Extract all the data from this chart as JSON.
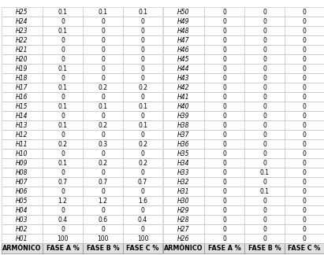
{
  "headers": [
    "ARMÓNICO",
    "FASE A %",
    "FASE B %",
    "FASE C %"
  ],
  "rows_left": [
    [
      "H01",
      "100",
      "100",
      "100"
    ],
    [
      "H02",
      "0",
      "0",
      "0"
    ],
    [
      "H03",
      "0.4",
      "0.6",
      "0.4"
    ],
    [
      "H04",
      "0",
      "0",
      "0"
    ],
    [
      "H05",
      "1.2",
      "1.2",
      "1.6"
    ],
    [
      "H06",
      "0",
      "0",
      "0"
    ],
    [
      "H07",
      "0.7",
      "0.7",
      "0.7"
    ],
    [
      "H08",
      "0",
      "0",
      "0"
    ],
    [
      "H09",
      "0.1",
      "0.2",
      "0.2"
    ],
    [
      "H10",
      "0",
      "0",
      "0"
    ],
    [
      "H11",
      "0.2",
      "0.3",
      "0.2"
    ],
    [
      "H12",
      "0",
      "0",
      "0"
    ],
    [
      "H13",
      "0.1",
      "0.2",
      "0.1"
    ],
    [
      "H14",
      "0",
      "0",
      "0"
    ],
    [
      "H15",
      "0.1",
      "0.1",
      "0.1"
    ],
    [
      "H16",
      "0",
      "0",
      "0"
    ],
    [
      "H17",
      "0.1",
      "0.2",
      "0.2"
    ],
    [
      "H18",
      "0",
      "0",
      "0"
    ],
    [
      "H19",
      "0.1",
      "0",
      "0"
    ],
    [
      "H20",
      "0",
      "0",
      "0"
    ],
    [
      "H21",
      "0",
      "0",
      "0"
    ],
    [
      "H22",
      "0",
      "0",
      "0"
    ],
    [
      "H23",
      "0.1",
      "0",
      "0"
    ],
    [
      "H24",
      "0",
      "0",
      "0"
    ],
    [
      "H25",
      "0.1",
      "0.1",
      "0.1"
    ]
  ],
  "rows_right": [
    [
      "H26",
      "0",
      "0",
      "0"
    ],
    [
      "H27",
      "0",
      "0",
      "0"
    ],
    [
      "H28",
      "0",
      "0",
      "0"
    ],
    [
      "H29",
      "0",
      "0",
      "0"
    ],
    [
      "H30",
      "0",
      "0",
      "0"
    ],
    [
      "H31",
      "0",
      "0.1",
      "0"
    ],
    [
      "H32",
      "0",
      "0",
      "0"
    ],
    [
      "H33",
      "0",
      "0.1",
      "0"
    ],
    [
      "H34",
      "0",
      "0",
      "0"
    ],
    [
      "H35",
      "0",
      "0",
      "0"
    ],
    [
      "H36",
      "0",
      "0",
      "0"
    ],
    [
      "H37",
      "0",
      "0",
      "0"
    ],
    [
      "H38",
      "0",
      "0",
      "0"
    ],
    [
      "H39",
      "0",
      "0",
      "0"
    ],
    [
      "H40",
      "0",
      "0",
      "0"
    ],
    [
      "H41",
      "0",
      "0",
      "0"
    ],
    [
      "H42",
      "0",
      "0",
      "0"
    ],
    [
      "H43",
      "0",
      "0",
      "0"
    ],
    [
      "H44",
      "0",
      "0",
      "0"
    ],
    [
      "H45",
      "0",
      "0",
      "0"
    ],
    [
      "H46",
      "0",
      "0",
      "0"
    ],
    [
      "H47",
      "0",
      "0",
      "0"
    ],
    [
      "H48",
      "0",
      "0",
      "0"
    ],
    [
      "H49",
      "0",
      "0",
      "0"
    ],
    [
      "H50",
      "0",
      "0",
      "0"
    ]
  ],
  "font_size": 5.5,
  "header_font_size": 5.8,
  "bg_white": "#ffffff",
  "bg_gray": "#e8e8e8",
  "border_color": "#aaaaaa",
  "text_color": "#000000"
}
